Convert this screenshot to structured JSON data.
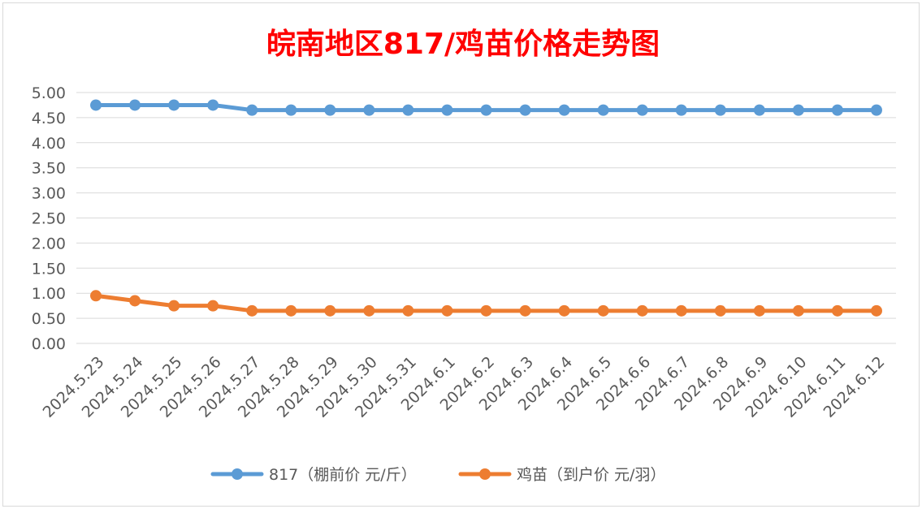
{
  "chart_data": {
    "type": "line",
    "title": "皖南地区817/鸡苗价格走势图",
    "categories": [
      "2024.5.23",
      "2024.5.24",
      "2024.5.25",
      "2024.5.26",
      "2024.5.27",
      "2024.5.28",
      "2024.5.29",
      "2024.5.30",
      "2024.5.31",
      "2024.6.1",
      "2024.6.2",
      "2024.6.3",
      "2024.6.4",
      "2024.6.5",
      "2024.6.6",
      "2024.6.7",
      "2024.6.8",
      "2024.6.9",
      "2024.6.10",
      "2024.6.11",
      "2024.6.12"
    ],
    "series": [
      {
        "name": "817（棚前价 元/斤）",
        "color": "#5b9bd5",
        "values": [
          4.75,
          4.75,
          4.75,
          4.75,
          4.65,
          4.65,
          4.65,
          4.65,
          4.65,
          4.65,
          4.65,
          4.65,
          4.65,
          4.65,
          4.65,
          4.65,
          4.65,
          4.65,
          4.65,
          4.65,
          4.65
        ]
      },
      {
        "name": "鸡苗（到户价 元/羽）",
        "color": "#ed7d31",
        "values": [
          0.95,
          0.85,
          0.75,
          0.75,
          0.65,
          0.65,
          0.65,
          0.65,
          0.65,
          0.65,
          0.65,
          0.65,
          0.65,
          0.65,
          0.65,
          0.65,
          0.65,
          0.65,
          0.65,
          0.65,
          0.65
        ]
      }
    ],
    "y_ticks": [
      "0.00",
      "0.50",
      "1.00",
      "1.50",
      "2.00",
      "2.50",
      "3.00",
      "3.50",
      "4.00",
      "4.50",
      "5.00"
    ],
    "ylim": [
      0,
      5
    ],
    "grid": true,
    "legend_position": "bottom",
    "xlabel": "",
    "ylabel": ""
  }
}
